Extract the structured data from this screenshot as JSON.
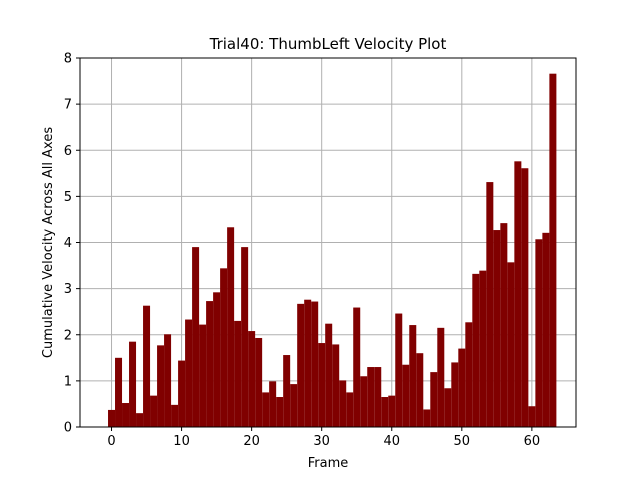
{
  "chart_data": {
    "type": "bar",
    "title": "Trial40: ThumbLeft Velocity Plot",
    "xlabel": "Frame",
    "ylabel": "Cumulative Velocity Across All Axes",
    "x": [
      0,
      1,
      2,
      3,
      4,
      5,
      6,
      7,
      8,
      9,
      10,
      11,
      12,
      13,
      14,
      15,
      16,
      17,
      18,
      19,
      20,
      21,
      22,
      23,
      24,
      25,
      26,
      27,
      28,
      29,
      30,
      31,
      32,
      33,
      34,
      35,
      36,
      37,
      38,
      39,
      40,
      41,
      42,
      43,
      44,
      45,
      46,
      47,
      48,
      49,
      50,
      51,
      52,
      53,
      54,
      55,
      56,
      57,
      58,
      59,
      60,
      61,
      62,
      63
    ],
    "values": [
      0.37,
      1.5,
      0.52,
      1.85,
      0.3,
      2.63,
      0.68,
      1.77,
      2.01,
      0.48,
      1.44,
      2.33,
      3.9,
      2.22,
      2.73,
      2.92,
      3.44,
      4.33,
      2.3,
      3.9,
      2.08,
      1.93,
      0.75,
      0.99,
      0.65,
      1.56,
      0.93,
      2.67,
      2.76,
      2.72,
      1.82,
      2.24,
      1.79,
      1.01,
      0.75,
      2.59,
      1.1,
      1.3,
      1.3,
      0.65,
      0.68,
      2.46,
      1.35,
      2.21,
      1.6,
      0.38,
      1.19,
      2.15,
      0.84,
      1.4,
      1.7,
      2.27,
      3.32,
      3.39,
      5.31,
      4.27,
      4.42,
      3.57,
      5.76,
      5.61,
      0.45,
      4.07,
      4.21,
      7.66
    ],
    "xlim": [
      -4.5,
      66.3
    ],
    "ylim": [
      0,
      8
    ],
    "xticks": [
      0,
      10,
      20,
      30,
      40,
      50,
      60
    ],
    "yticks": [
      0,
      1,
      2,
      3,
      4,
      5,
      6,
      7,
      8
    ],
    "grid": true,
    "bar_color": "#800000"
  }
}
